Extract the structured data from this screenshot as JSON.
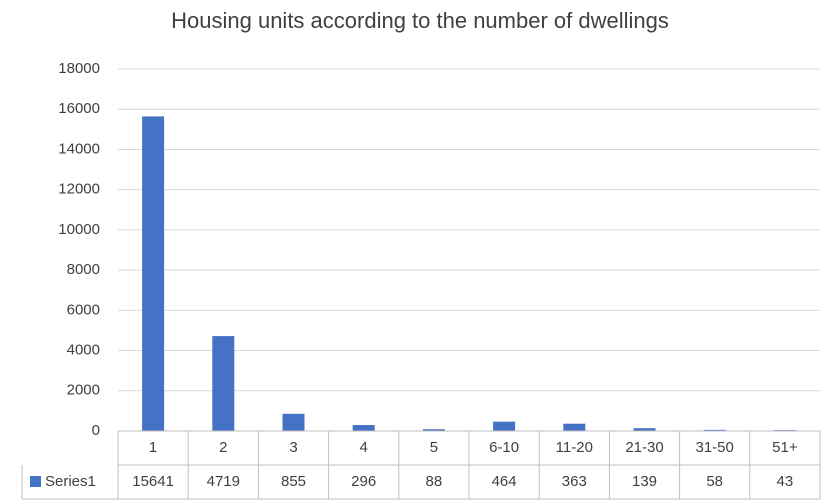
{
  "chart_data": {
    "type": "bar",
    "title": "Housing units according to the number of dwellings",
    "categories": [
      "1",
      "2",
      "3",
      "4",
      "5",
      "6-10",
      "11-20",
      "21-30",
      "31-50",
      "51+"
    ],
    "series": [
      {
        "name": "Series1",
        "color": "#4472c4",
        "values": [
          15641,
          4719,
          855,
          296,
          88,
          464,
          363,
          139,
          58,
          43
        ]
      }
    ],
    "ylim": [
      0,
      18000
    ],
    "yticks": [
      0,
      2000,
      4000,
      6000,
      8000,
      10000,
      12000,
      14000,
      16000,
      18000
    ],
    "grid": true
  }
}
